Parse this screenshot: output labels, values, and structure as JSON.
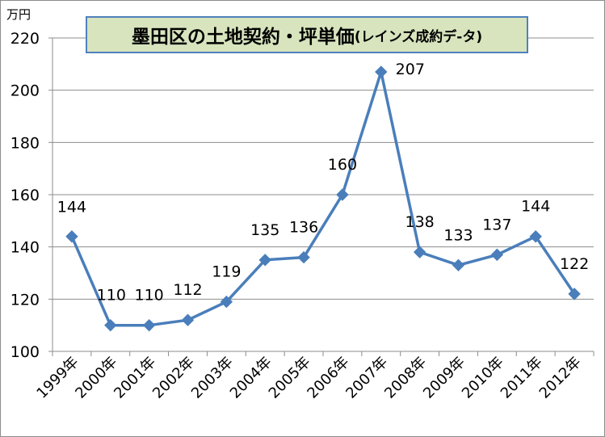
{
  "chart_data": {
    "type": "line",
    "title": "墨田区の土地契約・坪単価",
    "subtitle": "(レインズ成約デ-タ)",
    "ylabel": "万円",
    "xlabel": "",
    "ylim": [
      100,
      220
    ],
    "yticks": [
      100,
      120,
      140,
      160,
      180,
      200,
      220
    ],
    "grid": true,
    "legend": "none",
    "categories": [
      "1999年",
      "2000年",
      "2001年",
      "2002年",
      "2003年",
      "2004年",
      "2005年",
      "2006年",
      "2007年",
      "2008年",
      "2009年",
      "2010年",
      "2011年",
      "2012年"
    ],
    "series": [
      {
        "values": [
          144,
          110,
          110,
          112,
          119,
          135,
          136,
          160,
          207,
          138,
          133,
          137,
          144,
          122
        ],
        "color": "#4a7ebb",
        "marker": "diamond"
      }
    ]
  }
}
